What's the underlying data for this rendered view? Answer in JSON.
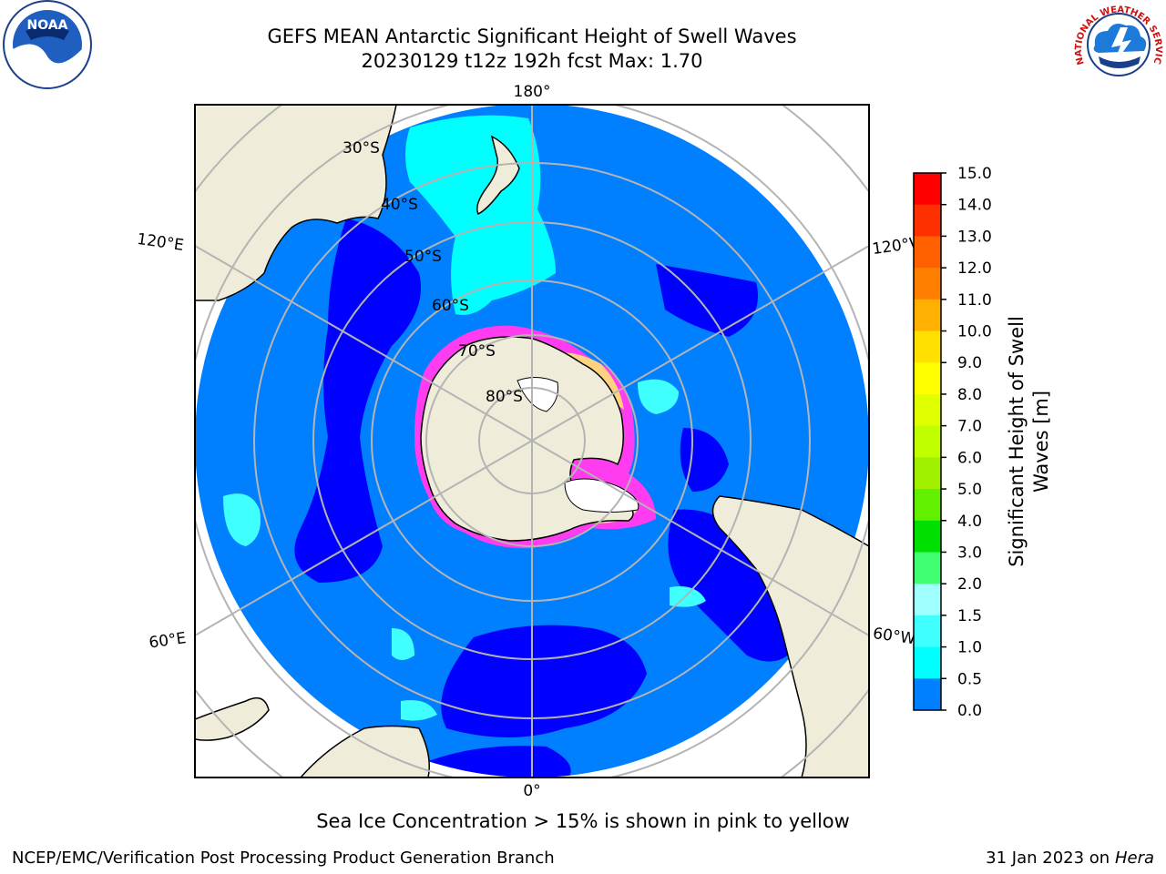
{
  "title_line1": "GEFS MEAN Antarctic Significant Height of Swell Waves",
  "title_line2": "20230129 t12z 192h fcst   Max: 1.70",
  "logos": {
    "left": "NOAA",
    "right": "NATIONAL WEATHER SERVICE",
    "left_icon": "noaa-logo-icon",
    "right_icon": "nws-logo-icon"
  },
  "map": {
    "projection": "south-polar-stereographic",
    "meridian_labels": {
      "top": "180°",
      "bottom": "0°",
      "upper_left": "120°E",
      "lower_left": "60°E",
      "upper_right": "120°W",
      "lower_right": "60°W"
    },
    "parallel_labels": [
      "30°S",
      "40°S",
      "50°S",
      "60°S",
      "70°S",
      "80°S"
    ],
    "colors": {
      "land": "#efedda",
      "ocean_0_0.5": "#0000ff",
      "ocean_0.5_1.0": "#0080ff",
      "ocean_1.0_1.5": "#00ffff",
      "ocean_1.5_2.0": "#40ffff",
      "ice_edge": "#ff3cf0",
      "ice": "#ffffff",
      "grid": "#b4b4b4"
    }
  },
  "colorbar": {
    "title": "Significant Height of Swell Waves [m]",
    "title_line1": "Significant Height of Swell",
    "title_line2": "Waves [m]",
    "ticks": [
      "15.0",
      "14.0",
      "13.0",
      "12.0",
      "11.0",
      "10.0",
      "9.0",
      "8.0",
      "7.0",
      "6.0",
      "5.0",
      "4.0",
      "3.0",
      "2.0",
      "1.5",
      "1.0",
      "0.5",
      "0.0"
    ],
    "colors": [
      "#ff0000",
      "#ff3000",
      "#ff6000",
      "#ff8000",
      "#ffb000",
      "#ffe000",
      "#ffff00",
      "#e0ff00",
      "#c0ff00",
      "#a0f000",
      "#60f000",
      "#00e000",
      "#40ff70",
      "#a0ffff",
      "#40ffff",
      "#00ffff",
      "#0080ff",
      "#0000ff"
    ]
  },
  "caption": "Sea Ice Concentration > 15% is shown in pink to yellow",
  "footer_left": "NCEP/EMC/Verification Post Processing Product Generation Branch",
  "footer_right_prefix": "31 Jan 2023 on ",
  "footer_right_system": "Hera"
}
